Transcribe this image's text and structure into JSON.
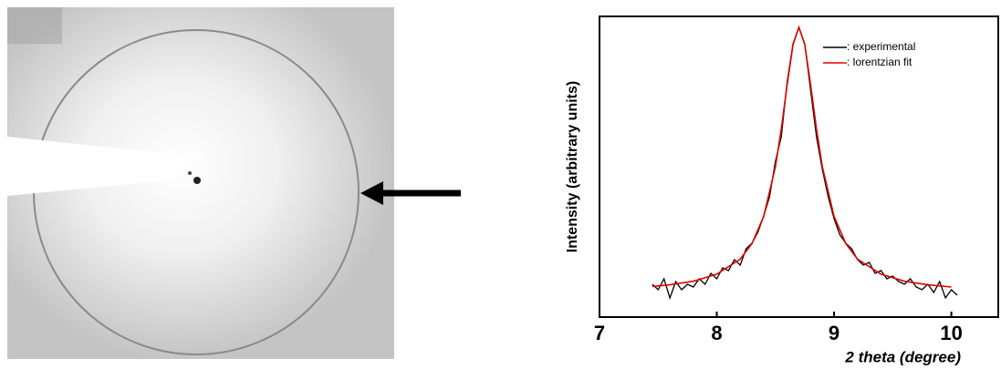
{
  "chart_data": {
    "type": "line",
    "x_label": "2 theta (degree)",
    "y_label": "Intensity (arbitrary units)",
    "xlim": [
      7,
      10.4
    ],
    "xticks": [
      7,
      8,
      9,
      10
    ],
    "ylim": [
      0,
      1.1
    ],
    "series": [
      {
        "name": ": experimental",
        "color": "#000000",
        "x": [
          7.45,
          7.5,
          7.55,
          7.6,
          7.65,
          7.7,
          7.75,
          7.8,
          7.85,
          7.9,
          7.95,
          8.0,
          8.05,
          8.1,
          8.15,
          8.2,
          8.25,
          8.3,
          8.35,
          8.4,
          8.45,
          8.5,
          8.55,
          8.6,
          8.65,
          8.7,
          8.75,
          8.8,
          8.85,
          8.9,
          8.95,
          9.0,
          9.05,
          9.1,
          9.15,
          9.2,
          9.25,
          9.3,
          9.35,
          9.4,
          9.45,
          9.5,
          9.55,
          9.6,
          9.65,
          9.7,
          9.75,
          9.8,
          9.85,
          9.9,
          9.95,
          10.0,
          10.05
        ],
        "values": [
          0.12,
          0.1,
          0.14,
          0.07,
          0.13,
          0.1,
          0.12,
          0.11,
          0.14,
          0.12,
          0.16,
          0.14,
          0.18,
          0.17,
          0.21,
          0.19,
          0.25,
          0.27,
          0.31,
          0.37,
          0.44,
          0.57,
          0.66,
          0.86,
          1.0,
          1.06,
          1.0,
          0.83,
          0.66,
          0.54,
          0.44,
          0.36,
          0.3,
          0.27,
          0.25,
          0.21,
          0.19,
          0.2,
          0.16,
          0.17,
          0.14,
          0.15,
          0.13,
          0.12,
          0.14,
          0.11,
          0.1,
          0.12,
          0.09,
          0.13,
          0.07,
          0.1,
          0.08
        ]
      },
      {
        "name": ": lorentzian fit",
        "color": "#e00000",
        "x": [
          7.45,
          7.6,
          7.8,
          8.0,
          8.2,
          8.3,
          8.4,
          8.5,
          8.55,
          8.6,
          8.65,
          8.7,
          8.75,
          8.8,
          8.85,
          8.9,
          9.0,
          9.1,
          9.2,
          9.4,
          9.6,
          9.8,
          10.0
        ],
        "values": [
          0.112,
          0.118,
          0.131,
          0.157,
          0.212,
          0.269,
          0.368,
          0.55,
          0.688,
          0.85,
          0.997,
          1.06,
          0.997,
          0.85,
          0.688,
          0.55,
          0.368,
          0.269,
          0.212,
          0.157,
          0.131,
          0.118,
          0.11
        ]
      }
    ]
  }
}
